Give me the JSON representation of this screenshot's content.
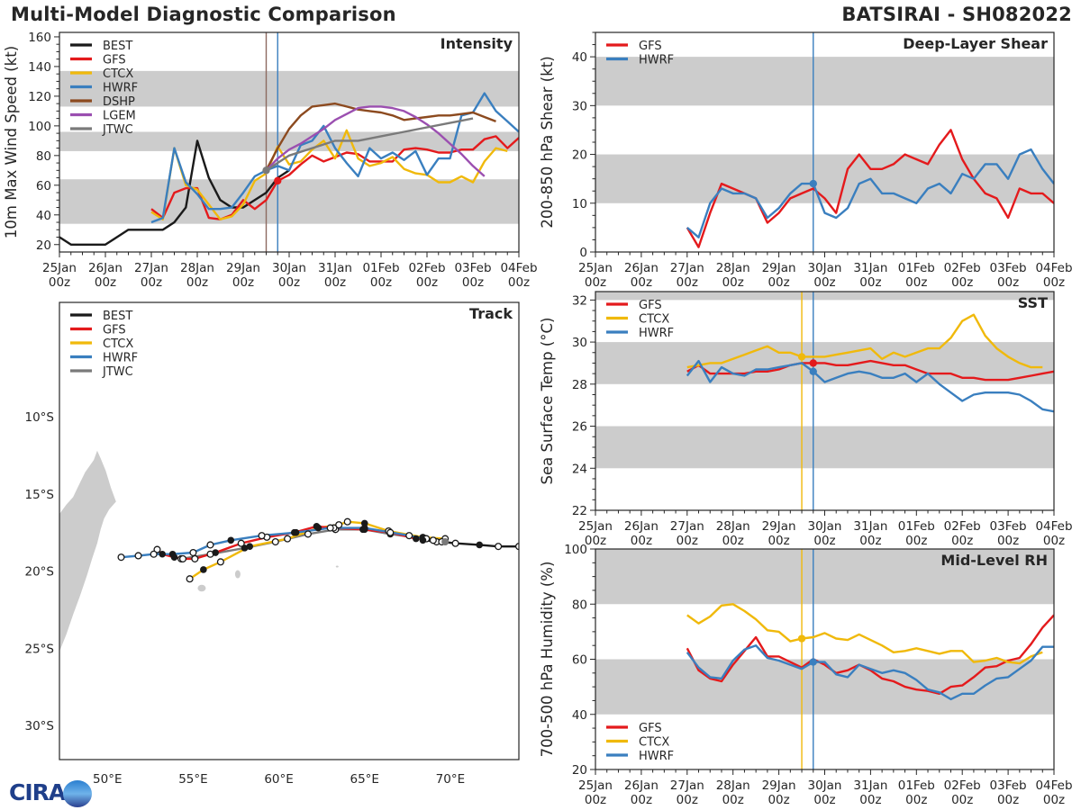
{
  "header": {
    "title": "Multi-Model Diagnostic Comparison",
    "storm": "BATSIRAI - SH082022"
  },
  "logo": {
    "text": "CIRA",
    "icon": "cira-logo-icon"
  },
  "colors": {
    "BEST": "#1a1a1a",
    "GFS": "#e41a1c",
    "CTCX": "#f0b90b",
    "HWRF": "#3a7fbf",
    "DSHP": "#8c4a1f",
    "LGEM": "#9b4fb0",
    "JTWC": "#7a7a7a",
    "band": "#cccccc",
    "land": "#cccccc"
  },
  "time_axis": {
    "start": "25Jan 00z",
    "hours_total": 240,
    "tick_labels": [
      [
        "25Jan",
        "00z"
      ],
      [
        "26Jan",
        "00z"
      ],
      [
        "27Jan",
        "00z"
      ],
      [
        "28Jan",
        "00z"
      ],
      [
        "29Jan",
        "00z"
      ],
      [
        "30Jan",
        "00z"
      ],
      [
        "31Jan",
        "00z"
      ],
      [
        "01Feb",
        "00z"
      ],
      [
        "02Feb",
        "00z"
      ],
      [
        "03Feb",
        "00z"
      ],
      [
        "04Feb",
        "00z"
      ]
    ]
  },
  "chart_data": [
    {
      "id": "intensity",
      "type": "line",
      "title": "Intensity",
      "xlabel": "",
      "ylabel": "10m Max Wind Speed (kt)",
      "x_unit": "hours since 25Jan 00z",
      "ylim": [
        15,
        163
      ],
      "yticks": [
        20,
        40,
        60,
        80,
        100,
        120,
        140,
        160
      ],
      "bands": [
        [
          34,
          64
        ],
        [
          83,
          96
        ],
        [
          113,
          137
        ]
      ],
      "vlines": [
        {
          "x": 108,
          "color": "#8c6a60"
        },
        {
          "x": 114,
          "color": "#3a7fbf"
        }
      ],
      "legend": [
        "BEST",
        "GFS",
        "CTCX",
        "HWRF",
        "DSHP",
        "LGEM",
        "JTWC"
      ],
      "legend_position": "top-left",
      "series": [
        {
          "name": "BEST",
          "x0": 0,
          "dx": 6,
          "values": [
            25,
            20,
            20,
            20,
            20,
            25,
            30,
            30,
            30,
            30,
            35,
            45,
            90,
            65,
            50,
            45,
            45,
            50,
            55,
            65,
            70
          ]
        },
        {
          "name": "GFS",
          "x0": 48,
          "dx": 6,
          "values": [
            44,
            38,
            55,
            58,
            58,
            38,
            37,
            40,
            50,
            44,
            50,
            63,
            67,
            74,
            80,
            76,
            79,
            82,
            81,
            76,
            76,
            76,
            84,
            85,
            84,
            82,
            82,
            84,
            84,
            91,
            93,
            85,
            92
          ]
        },
        {
          "name": "CTCX",
          "x0": 48,
          "dx": 6,
          "values": [
            42,
            37,
            85,
            60,
            57,
            47,
            37,
            39,
            47,
            63,
            68,
            86,
            74,
            76,
            84,
            90,
            78,
            97,
            78,
            73,
            75,
            79,
            71,
            68,
            67,
            62,
            62,
            66,
            62,
            76,
            85,
            83
          ]
        },
        {
          "name": "HWRF",
          "x0": 48,
          "dx": 6,
          "values": [
            35,
            38,
            85,
            62,
            54,
            44,
            44,
            45,
            55,
            66,
            70,
            73,
            70,
            87,
            90,
            100,
            85,
            75,
            66,
            85,
            78,
            82,
            77,
            83,
            67,
            78,
            78,
            107,
            109,
            122,
            110,
            103,
            96
          ]
        },
        {
          "name": "DSHP",
          "x0": 108,
          "dx": 6,
          "values": [
            70,
            85,
            98,
            107,
            113,
            114,
            115,
            113,
            111,
            110,
            109,
            107,
            104,
            105,
            106,
            107,
            107,
            108,
            109,
            106,
            103
          ]
        },
        {
          "name": "LGEM",
          "x0": 108,
          "dx": 6,
          "values": [
            70,
            78,
            84,
            88,
            93,
            98,
            104,
            108,
            112,
            113,
            113,
            112,
            110,
            106,
            101,
            95,
            88,
            81,
            73,
            66
          ]
        },
        {
          "name": "JTWC",
          "x0": 108,
          "dx": 12,
          "values": [
            70,
            80,
            85,
            90,
            90,
            93,
            96,
            99,
            102,
            105
          ]
        }
      ],
      "markers": [
        {
          "series": "GFS",
          "x": 114,
          "y": 63
        },
        {
          "series": "JTWC",
          "x": 108,
          "y": 70
        }
      ]
    },
    {
      "id": "shear",
      "type": "line",
      "title": "Deep-Layer Shear",
      "ylabel": "200-850 hPa Shear (kt)",
      "ylim": [
        0,
        45
      ],
      "yticks": [
        0,
        10,
        20,
        30,
        40
      ],
      "bands": [
        [
          10,
          20
        ],
        [
          30,
          40
        ]
      ],
      "vlines": [
        {
          "x": 114,
          "color": "#3a7fbf"
        }
      ],
      "legend": [
        "GFS",
        "HWRF"
      ],
      "legend_position": "top-left",
      "series": [
        {
          "name": "GFS",
          "x0": 48,
          "dx": 6,
          "values": [
            5,
            1,
            8,
            14,
            13,
            12,
            11,
            6,
            8,
            11,
            12,
            13,
            11,
            8,
            17,
            20,
            17,
            17,
            18,
            20,
            19,
            18,
            22,
            25,
            19,
            15,
            12,
            11,
            7,
            13,
            12,
            12,
            10
          ]
        },
        {
          "name": "HWRF",
          "x0": 48,
          "dx": 6,
          "values": [
            5,
            3,
            10,
            13,
            12,
            12,
            11,
            7,
            9,
            12,
            14,
            14,
            8,
            7,
            9,
            14,
            15,
            12,
            12,
            11,
            10,
            13,
            14,
            12,
            16,
            15,
            18,
            18,
            15,
            20,
            21,
            17,
            14
          ]
        }
      ],
      "markers": [
        {
          "series": "HWRF",
          "x": 114,
          "y": 14
        }
      ]
    },
    {
      "id": "sst",
      "type": "line",
      "title": "SST",
      "ylabel": "Sea Surface Temp (°C)",
      "ylim": [
        22,
        32.4
      ],
      "yticks": [
        22,
        24,
        26,
        28,
        30,
        32
      ],
      "bands": [
        [
          24,
          26
        ],
        [
          28,
          30
        ],
        [
          32,
          32.4
        ]
      ],
      "vlines": [
        {
          "x": 108,
          "color": "#f0b90b"
        },
        {
          "x": 114,
          "color": "#3a7fbf"
        }
      ],
      "legend": [
        "GFS",
        "CTCX",
        "HWRF"
      ],
      "legend_position": "top-left",
      "series": [
        {
          "name": "GFS",
          "x0": 48,
          "dx": 6,
          "values": [
            28.6,
            28.9,
            28.5,
            28.5,
            28.5,
            28.5,
            28.6,
            28.6,
            28.7,
            28.9,
            29.0,
            29.0,
            29.0,
            28.9,
            28.9,
            29.0,
            29.1,
            29.0,
            28.9,
            28.9,
            28.7,
            28.5,
            28.5,
            28.5,
            28.3,
            28.3,
            28.2,
            28.2,
            28.2,
            28.3,
            28.4,
            28.5,
            28.6
          ]
        },
        {
          "name": "CTCX",
          "x0": 48,
          "dx": 6,
          "values": [
            28.8,
            28.9,
            29.0,
            29.0,
            29.2,
            29.4,
            29.6,
            29.8,
            29.5,
            29.5,
            29.3,
            29.3,
            29.3,
            29.4,
            29.5,
            29.6,
            29.7,
            29.2,
            29.5,
            29.3,
            29.5,
            29.7,
            29.7,
            30.2,
            31.0,
            31.3,
            30.3,
            29.7,
            29.3,
            29.0,
            28.8,
            28.8
          ]
        },
        {
          "name": "HWRF",
          "x0": 48,
          "dx": 6,
          "values": [
            28.4,
            29.1,
            28.1,
            28.8,
            28.5,
            28.4,
            28.7,
            28.7,
            28.8,
            28.9,
            29.0,
            28.6,
            28.1,
            28.3,
            28.5,
            28.6,
            28.5,
            28.3,
            28.3,
            28.5,
            28.1,
            28.5,
            28.0,
            27.6,
            27.2,
            27.5,
            27.6,
            27.6,
            27.6,
            27.5,
            27.2,
            26.8,
            26.7
          ]
        }
      ],
      "markers": [
        {
          "series": "CTCX",
          "x": 108,
          "y": 29.3
        },
        {
          "series": "GFS",
          "x": 114,
          "y": 29.0
        },
        {
          "series": "HWRF",
          "x": 114,
          "y": 28.6
        }
      ]
    },
    {
      "id": "rh",
      "type": "line",
      "title": "Mid-Level RH",
      "ylabel": "700-500 hPa Humidity (%)",
      "ylim": [
        20,
        100
      ],
      "yticks": [
        20,
        40,
        60,
        80,
        100
      ],
      "bands": [
        [
          40,
          60
        ],
        [
          80,
          100
        ]
      ],
      "vlines": [
        {
          "x": 108,
          "color": "#f0b90b"
        },
        {
          "x": 114,
          "color": "#3a7fbf"
        }
      ],
      "legend": [
        "GFS",
        "CTCX",
        "HWRF"
      ],
      "legend_position": "bottom-left",
      "series": [
        {
          "name": "GFS",
          "x0": 48,
          "dx": 6,
          "values": [
            64,
            56,
            53,
            52,
            58,
            63,
            68,
            61,
            61,
            59,
            57,
            60,
            58,
            55,
            56,
            58,
            56,
            53,
            52,
            50,
            49,
            48.5,
            47.5,
            50,
            50.5,
            53.5,
            57,
            57.5,
            59.5,
            60.5,
            65.5,
            71.5,
            76
          ]
        },
        {
          "name": "CTCX",
          "x0": 48,
          "dx": 6,
          "values": [
            76,
            73,
            75.5,
            79.5,
            80,
            77.5,
            74.5,
            70.5,
            70,
            66.5,
            67.5,
            68,
            69.5,
            67.5,
            67,
            69,
            67,
            65,
            62.5,
            63,
            64,
            63,
            62,
            63,
            63,
            59,
            59.5,
            60.5,
            59,
            58.5,
            61,
            62.5
          ]
        },
        {
          "name": "HWRF",
          "x0": 48,
          "dx": 6,
          "values": [
            62.5,
            57,
            53.5,
            53,
            59.5,
            63.5,
            65,
            60.5,
            59.5,
            58,
            56.5,
            59,
            59,
            54.5,
            53.5,
            58,
            56.5,
            55,
            56,
            55,
            52.5,
            49,
            48,
            45.5,
            47.5,
            47.5,
            50.5,
            53,
            53.5,
            56.5,
            59.5,
            64.5,
            64.5
          ]
        }
      ],
      "markers": [
        {
          "series": "CTCX",
          "x": 108,
          "y": 67.5
        },
        {
          "series": "HWRF",
          "x": 114,
          "y": 59
        }
      ]
    },
    {
      "id": "track",
      "type": "scatter",
      "title": "Track",
      "xlabel": "",
      "ylabel": "",
      "xlim": [
        47.2,
        74
      ],
      "ylim": [
        -32.2,
        -2.6
      ],
      "xticks": [
        50,
        55,
        60,
        65,
        70
      ],
      "xtick_labels": [
        "50°E",
        "55°E",
        "60°E",
        "65°E",
        "70°E"
      ],
      "yticks": [
        -10,
        -15,
        -20,
        -25,
        -30
      ],
      "ytick_labels": [
        "10°S",
        "15°S",
        "20°S",
        "25°S",
        "30°S"
      ],
      "legend": [
        "BEST",
        "GFS",
        "CTCX",
        "HWRF",
        "JTWC"
      ],
      "legend_position": "top-left",
      "series": [
        {
          "name": "BEST",
          "lon": [
            74.0,
            72.8,
            71.7,
            70.3,
            69.5,
            68.4
          ],
          "lat": [
            -18.4,
            -18.4,
            -18.3,
            -18.2,
            -18.1,
            -18.0
          ],
          "filled": [
            false,
            false,
            true,
            false,
            false,
            true
          ]
        },
        {
          "name": "GFS",
          "lon": [
            69.2,
            68.6,
            68.0,
            66.5,
            64.9,
            63.2,
            62.2,
            60.9,
            59.3,
            57.8,
            56.3,
            55.1,
            54.4,
            53.9,
            53.2,
            52.9
          ],
          "lat": [
            -18.1,
            -17.9,
            -17.9,
            -17.5,
            -17.3,
            -17.2,
            -17.1,
            -17.5,
            -17.8,
            -18.2,
            -18.8,
            -19.2,
            -19.2,
            -19.1,
            -18.9,
            -18.6
          ],
          "filled": [
            false,
            false,
            true,
            false,
            true,
            false,
            true,
            true,
            false,
            false,
            true,
            false,
            false,
            true,
            true,
            false
          ]
        },
        {
          "name": "CTCX",
          "lon": [
            69.7,
            68.4,
            66.4,
            65.0,
            64.0,
            63.5,
            62.3,
            60.5,
            58.3,
            56.6,
            55.6,
            54.8
          ],
          "lat": [
            -17.9,
            -17.8,
            -17.4,
            -16.9,
            -16.8,
            -17.0,
            -17.2,
            -17.9,
            -18.4,
            -19.4,
            -19.9,
            -20.5
          ],
          "filled": [
            false,
            true,
            false,
            true,
            false,
            false,
            true,
            false,
            true,
            false,
            true,
            false
          ]
        },
        {
          "name": "HWRF",
          "lon": [
            69.0,
            67.6,
            65.0,
            63.0,
            61.0,
            59.0,
            57.2,
            56.0,
            55.0,
            53.8,
            52.7,
            51.8,
            50.8
          ],
          "lat": [
            -18.0,
            -17.7,
            -17.2,
            -17.2,
            -17.5,
            -17.7,
            -18.0,
            -18.3,
            -18.8,
            -18.9,
            -18.9,
            -19.0,
            -19.1
          ],
          "filled": [
            false,
            false,
            true,
            false,
            true,
            false,
            true,
            false,
            false,
            true,
            false,
            false,
            false
          ]
        },
        {
          "name": "JTWC",
          "lon": [
            69.7,
            68.6,
            66.5,
            65.0,
            63.3,
            61.7,
            59.8,
            58.0,
            56.0,
            54.3
          ],
          "lat": [
            -18.1,
            -17.9,
            -17.6,
            -17.3,
            -17.3,
            -17.6,
            -18.1,
            -18.5,
            -18.9,
            -19.2
          ],
          "filled": [
            true,
            true,
            true,
            true,
            false,
            false,
            false,
            true,
            false,
            false
          ]
        }
      ],
      "land": [
        "Madagascar",
        "Reunion",
        "Mauritius",
        "Rodrigues"
      ]
    }
  ]
}
